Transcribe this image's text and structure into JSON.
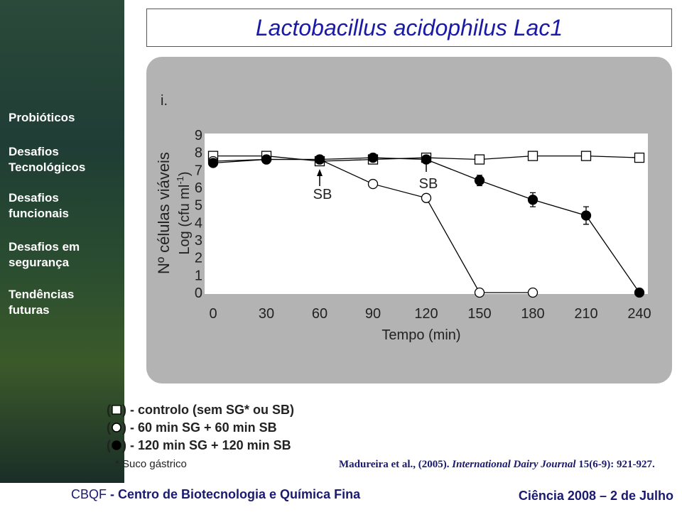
{
  "slide": {
    "menu": [
      "Probióticos",
      "Desafios Tecnológicos",
      "Desafios funcionais",
      "Desafios em segurança",
      "Tendências futuras"
    ],
    "panel_label": "i.",
    "footnote": "* Suco gástrico",
    "reference": [
      "Madureira et al., (2005). ",
      "International Dairy Journal",
      " 15(6-9): 921-927."
    ],
    "footer_left_a": "CBQF",
    "footer_left_b": "- Centro de Biotecnologia e Química Fina",
    "footer_right": "Ciência 2008 – 2 de Julho"
  },
  "chart_data": {
    "type": "line",
    "title": "Lactobacillus acidophilus Lac1",
    "x_label": "Tempo (min)",
    "y_label": "Nº células viáveis",
    "y_label_unit": [
      "Log (cfu ml",
      "-1",
      ")"
    ],
    "x": [
      0,
      30,
      60,
      90,
      120,
      150,
      180,
      210,
      240
    ],
    "xlim": [
      0,
      240
    ],
    "xticks": [
      0,
      30,
      60,
      90,
      120,
      150,
      180,
      210,
      240
    ],
    "ylim": [
      0,
      9
    ],
    "yticks": [
      0,
      1,
      2,
      3,
      4,
      5,
      6,
      7,
      8,
      9
    ],
    "annotations": [
      {
        "text": "SB",
        "x": 60
      },
      {
        "text": "SB",
        "x": 120
      }
    ],
    "legend_brackets": [
      "(",
      ") -"
    ],
    "series": [
      {
        "name": "controlo (sem SG* ou SB)",
        "marker": "square",
        "color": "#000000",
        "values": [
          7.8,
          7.8,
          7.5,
          7.6,
          7.7,
          7.6,
          7.8,
          7.8,
          7.7
        ]
      },
      {
        "name": "60 min SG + 60 min SB",
        "marker": "circle-open",
        "color": "#000000",
        "values": [
          7.5,
          7.6,
          7.6,
          6.2,
          5.4,
          0,
          0,
          null,
          null
        ]
      },
      {
        "name": "120 min SG + 120 min SB",
        "marker": "circle-filled",
        "color": "#000000",
        "values": [
          7.4,
          7.6,
          7.6,
          7.7,
          7.6,
          6.4,
          5.3,
          4.4,
          0
        ],
        "errors": [
          null,
          null,
          null,
          null,
          null,
          0.3,
          0.4,
          0.5,
          null
        ]
      }
    ]
  }
}
